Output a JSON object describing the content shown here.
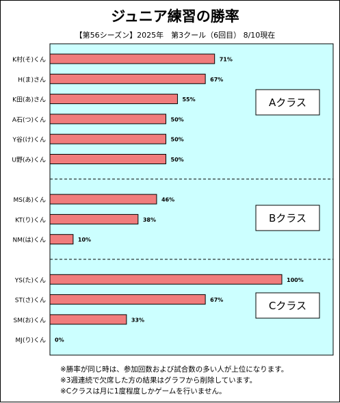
{
  "chart_data": {
    "type": "bar",
    "orientation": "horizontal",
    "title": "ジュニア練習の勝率",
    "subtitle": "【第56シーズン】2025年　第3クール（6回目） 8/10現在",
    "xlabel": "",
    "ylabel": "",
    "xlim": [
      0,
      100
    ],
    "unit": "%",
    "grid": false,
    "colors": {
      "bar": "#f07c7c",
      "plot_bg": "#ccffff",
      "bar_border": "#000000",
      "separator": "#000000"
    },
    "groups": [
      {
        "label": "Aクラス",
        "items": [
          {
            "name": "K村(そ)くん",
            "value": 71,
            "value_label": "71%"
          },
          {
            "name": "H(ま)さん",
            "value": 67,
            "value_label": "67%"
          },
          {
            "name": "K田(あ)さん",
            "value": 55,
            "value_label": "55%"
          },
          {
            "name": "A石(つ)くん",
            "value": 50,
            "value_label": "50%"
          },
          {
            "name": "Y谷(け)くん",
            "value": 50,
            "value_label": "50%"
          },
          {
            "name": "U野(み)くん",
            "value": 50,
            "value_label": "50%"
          }
        ]
      },
      {
        "label": "Bクラス",
        "items": [
          {
            "name": "MS(あ)くん",
            "value": 46,
            "value_label": "46%"
          },
          {
            "name": "KT(り)くん",
            "value": 38,
            "value_label": "38%"
          },
          {
            "name": "NM(は)くん",
            "value": 10,
            "value_label": "10%"
          }
        ]
      },
      {
        "label": "Cクラス",
        "items": [
          {
            "name": "YS(た)くん",
            "value": 100,
            "value_label": "100%"
          },
          {
            "name": "ST(さ)くん",
            "value": 67,
            "value_label": "67%"
          },
          {
            "name": "SM(お)くん",
            "value": 33,
            "value_label": "33%"
          },
          {
            "name": "MJ(り)くん",
            "value": 0,
            "value_label": "0%"
          }
        ]
      }
    ]
  },
  "notes": [
    "※勝率が同じ時は、参加回数および試合数の多い人が上位になります。",
    "※3週連続で欠席した方の結果はグラフから削除しています。",
    "※Cクラスは月に1度程度しかゲームを行いません。"
  ]
}
